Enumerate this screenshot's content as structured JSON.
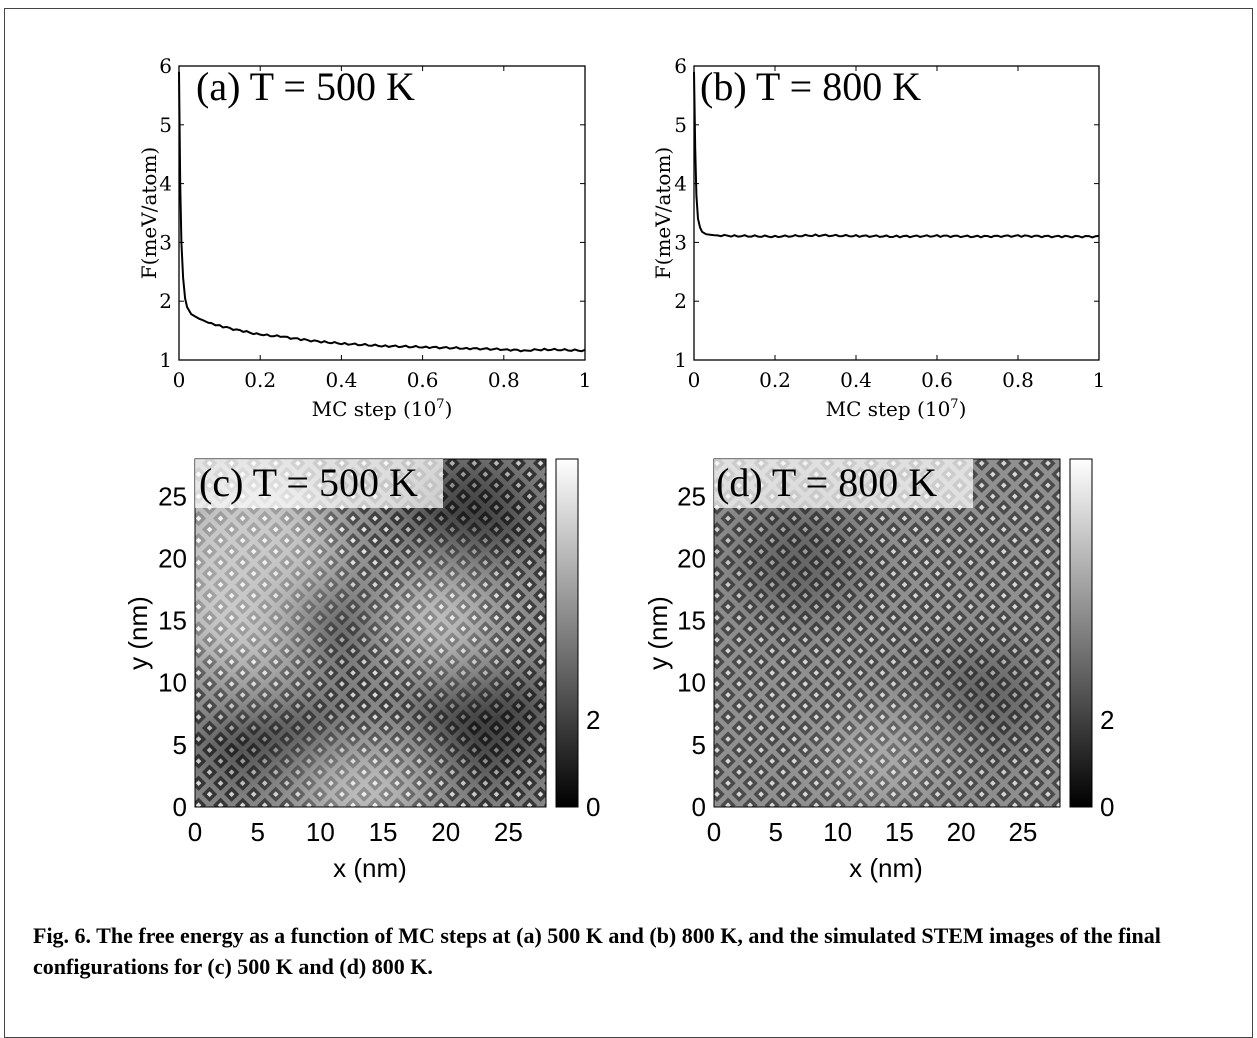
{
  "figure": {
    "caption": "Fig. 6. The free energy as a function of MC steps at (a) 500 K and (b) 800 K, and the simulated STEM images of the final configurations for (c) 500 K and (d) 800 K."
  },
  "chart_data": [
    {
      "type": "line",
      "panel": "a",
      "title": "(a) T = 500 K",
      "xlabel": "MC step (10",
      "xlabel_exp": "7",
      "ylabel": "F(meV/atom)",
      "xlim": [
        0,
        1
      ],
      "ylim": [
        1,
        6
      ],
      "xticks": [
        "0",
        "0.2",
        "0.4",
        "0.6",
        "0.8",
        "1"
      ],
      "yticks": [
        "1",
        "2",
        "3",
        "4",
        "5",
        "6"
      ],
      "grid": false,
      "color": "#000000",
      "x": [
        0,
        0.003,
        0.006,
        0.01,
        0.015,
        0.02,
        0.03,
        0.05,
        0.08,
        0.1,
        0.15,
        0.2,
        0.25,
        0.3,
        0.35,
        0.4,
        0.5,
        0.6,
        0.7,
        0.8,
        0.85,
        0.9,
        1.0
      ],
      "y": [
        5.9,
        4.0,
        3.0,
        2.4,
        2.05,
        1.9,
        1.78,
        1.7,
        1.63,
        1.58,
        1.5,
        1.43,
        1.4,
        1.35,
        1.31,
        1.28,
        1.24,
        1.22,
        1.2,
        1.18,
        1.16,
        1.18,
        1.16
      ]
    },
    {
      "type": "line",
      "panel": "b",
      "title": "(b) T = 800 K",
      "xlabel": "MC step (10",
      "xlabel_exp": "7",
      "ylabel": "F(meV/atom)",
      "xlim": [
        0,
        1
      ],
      "ylim": [
        1,
        6
      ],
      "xticks": [
        "0",
        "0.2",
        "0.4",
        "0.6",
        "0.8",
        "1"
      ],
      "yticks": [
        "1",
        "2",
        "3",
        "4",
        "5",
        "6"
      ],
      "grid": false,
      "color": "#000000",
      "x": [
        0,
        0.003,
        0.006,
        0.01,
        0.015,
        0.02,
        0.03,
        0.05,
        0.1,
        0.2,
        0.3,
        0.4,
        0.5,
        0.6,
        0.7,
        0.8,
        0.9,
        1.0
      ],
      "y": [
        5.9,
        4.6,
        3.8,
        3.4,
        3.25,
        3.18,
        3.14,
        3.12,
        3.11,
        3.1,
        3.12,
        3.11,
        3.1,
        3.11,
        3.1,
        3.11,
        3.1,
        3.1
      ]
    },
    {
      "type": "heatmap",
      "panel": "c",
      "title": "(c) T = 500 K",
      "xlabel": "x (nm)",
      "ylabel": "y (nm)",
      "xlim": [
        0,
        28
      ],
      "ylim": [
        0,
        28
      ],
      "xticks": [
        "0",
        "5",
        "10",
        "15",
        "20",
        "25"
      ],
      "yticks": [
        "0",
        "5",
        "10",
        "15",
        "20",
        "25"
      ],
      "colorbar_ticks": [
        "0",
        "2"
      ],
      "colormap": "gray"
    },
    {
      "type": "heatmap",
      "panel": "d",
      "title": "(d) T = 800 K",
      "xlabel": "x (nm)",
      "ylabel": "y (nm)",
      "xlim": [
        0,
        28
      ],
      "ylim": [
        0,
        28
      ],
      "xticks": [
        "0",
        "5",
        "10",
        "15",
        "20",
        "25"
      ],
      "yticks": [
        "0",
        "5",
        "10",
        "15",
        "20",
        "25"
      ],
      "colorbar_ticks": [
        "0",
        "2"
      ],
      "colormap": "gray"
    }
  ]
}
